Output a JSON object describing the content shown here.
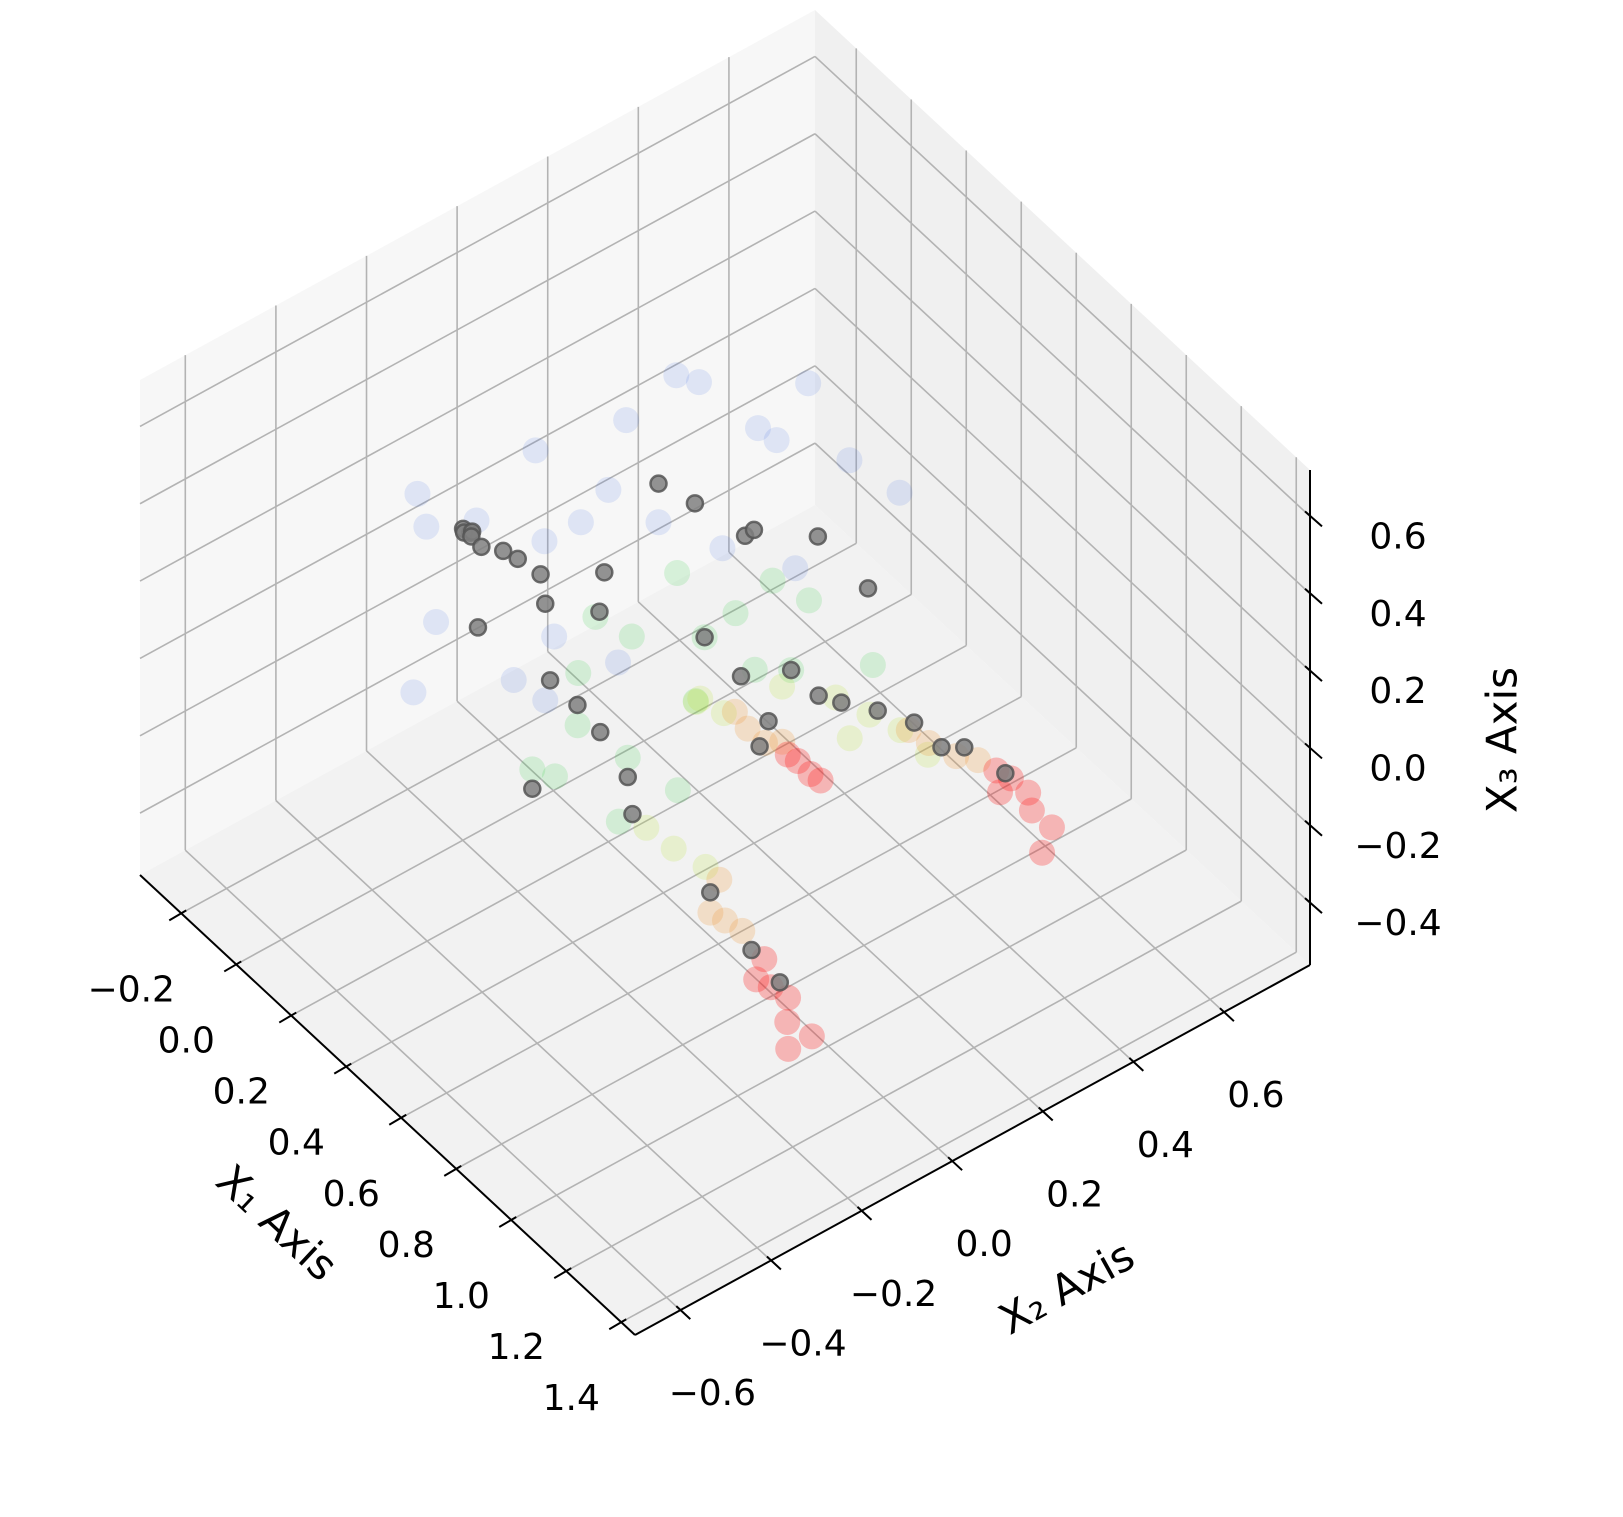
{
  "chart_data": {
    "type": "scatter3d",
    "xlabel": "X₁ Axis",
    "ylabel": "X₂ Axis",
    "zlabel": "X₃ Axis",
    "xlim": [
      -0.35,
      1.45
    ],
    "ylim": [
      -0.7,
      0.79
    ],
    "zlim": [
      -0.56,
      0.72
    ],
    "xticks": [
      {
        "value": -0.2,
        "label": "−0.2"
      },
      {
        "value": 0,
        "label": "0.0"
      },
      0.2,
      0.4,
      0.6,
      0.8,
      {
        "value": 1,
        "label": "1.0"
      },
      1.2,
      1.4
    ],
    "yticks": [
      {
        "value": -0.6,
        "label": "−0.6"
      },
      {
        "value": -0.4,
        "label": "−0.4"
      },
      {
        "value": -0.2,
        "label": "−0.2"
      },
      {
        "value": 0,
        "label": "0.0"
      },
      0.2,
      0.4,
      0.6
    ],
    "zticks": [
      {
        "value": -0.4,
        "label": "−0.4"
      },
      {
        "value": -0.2,
        "label": "−0.2"
      },
      {
        "value": 0,
        "label": "0.0"
      },
      0.2,
      0.4,
      0.6
    ],
    "grid": true,
    "series": [
      {
        "color": "#4a6fe3",
        "alpha": 0.14,
        "x": [
          0.0,
          0.05,
          0.1,
          0.15,
          0.2,
          0.25,
          -0.05,
          0.1,
          0.3,
          0.2,
          0.35,
          0.4,
          0.15,
          0.05,
          0.25,
          0.45,
          0.5,
          0.3,
          0.1,
          0.2,
          0.55,
          0.6,
          0.35,
          0.4
        ],
        "y": [
          -0.3,
          -0.2,
          -0.1,
          -0.35,
          0.0,
          -0.15,
          -0.25,
          0.1,
          0.05,
          0.2,
          -0.3,
          0.25,
          -0.4,
          -0.05,
          0.3,
          0.1,
          0.35,
          -0.2,
          0.0,
          0.15,
          0.2,
          0.4,
          0.35,
          -0.1
        ],
        "z": [
          0.4,
          0.3,
          0.45,
          0.2,
          0.35,
          0.1,
          0.25,
          0.4,
          0.3,
          0.5,
          0.15,
          0.45,
          0.05,
          0.15,
          0.35,
          0.3,
          0.4,
          0.0,
          0.2,
          0.55,
          0.25,
          0.35,
          0.5,
          0.1
        ]
      },
      {
        "color": "#2ecc40",
        "alpha": 0.16,
        "x": [
          0.5,
          0.6,
          0.55,
          0.45,
          0.65,
          0.5,
          0.4,
          0.6,
          0.7,
          0.55,
          0.45,
          0.65,
          0.5,
          0.6,
          0.75,
          0.7,
          0.42,
          0.58
        ],
        "y": [
          -0.25,
          -0.2,
          0.0,
          -0.1,
          0.05,
          -0.3,
          -0.15,
          -0.05,
          0.1,
          0.15,
          0.0,
          -0.25,
          -0.35,
          0.2,
          0.25,
          -0.15,
          -0.2,
          0.05
        ],
        "z": [
          0.1,
          0.05,
          0.2,
          0.2,
          0.15,
          0.0,
          0.25,
          0.1,
          0.15,
          0.25,
          0.3,
          -0.05,
          0.05,
          0.2,
          0.1,
          0.0,
          0.15,
          0.25
        ]
      },
      {
        "color": "#b8e62e",
        "alpha": 0.18,
        "x": [
          0.8,
          0.85,
          0.78,
          0.82,
          0.88,
          0.6,
          0.62,
          0.75,
          0.9,
          0.7,
          0.95,
          0.65
        ],
        "y": [
          -0.22,
          -0.18,
          0.15,
          0.2,
          0.12,
          -0.04,
          0.0,
          -0.25,
          0.22,
          0.08,
          0.25,
          -0.08
        ],
        "z": [
          -0.04,
          -0.08,
          0.1,
          0.05,
          0.08,
          0.1,
          0.05,
          0.0,
          0.05,
          0.12,
          0.0,
          0.15
        ]
      },
      {
        "color": "#f28c1e",
        "alpha": 0.2,
        "x": [
          0.97,
          1.0,
          0.95,
          0.97,
          1.02,
          0.93,
          0.69,
          0.72,
          0.66,
          1.05,
          0.9,
          0.75
        ],
        "y": [
          -0.21,
          -0.19,
          -0.23,
          0.24,
          0.27,
          0.22,
          0.01,
          0.03,
          0.0,
          0.3,
          -0.18,
          0.05
        ],
        "z": [
          -0.12,
          -0.14,
          -0.1,
          0.05,
          0.03,
          0.07,
          0.05,
          0.02,
          0.08,
          0.02,
          -0.08,
          0.03
        ]
      },
      {
        "color": "#ff1a1a",
        "alpha": 0.28,
        "x": [
          1.12,
          1.15,
          1.1,
          1.18,
          1.22,
          1.08,
          1.12,
          1.15,
          1.1,
          1.18,
          1.22,
          0.79,
          0.82,
          0.77,
          0.84,
          1.2,
          1.25,
          1.13
        ],
        "y": [
          -0.2,
          -0.18,
          -0.22,
          -0.2,
          -0.17,
          -0.19,
          0.33,
          0.35,
          0.31,
          0.34,
          0.36,
          0.06,
          0.07,
          0.05,
          0.08,
          -0.21,
          0.32,
          0.3
        ],
        "z": [
          -0.2,
          -0.22,
          -0.18,
          -0.25,
          -0.28,
          -0.16,
          0.0,
          -0.03,
          0.02,
          -0.05,
          -0.08,
          0.0,
          -0.02,
          0.01,
          -0.03,
          -0.3,
          -0.1,
          -0.01
        ]
      },
      {
        "color": "#808080",
        "edgecolor": "#555555",
        "alpha": 0.85,
        "x": [
          0.1,
          0.11,
          0.12,
          0.1,
          0.13,
          0.15,
          0.18,
          0.2,
          0.25,
          0.3,
          0.22,
          0.35,
          0.4,
          0.45,
          0.5,
          0.3,
          0.35,
          0.55,
          0.6,
          0.65,
          0.7,
          0.8,
          0.85,
          0.9,
          1.0,
          1.1,
          1.12,
          0.6,
          0.7,
          0.75,
          0.95,
          1.05,
          0.5,
          0.45,
          0.4,
          0.65,
          0.8,
          0.9,
          0.55,
          0.25
        ],
        "y": [
          -0.26,
          -0.25,
          -0.27,
          -0.24,
          -0.26,
          -0.25,
          -0.22,
          -0.2,
          -0.18,
          -0.2,
          -0.3,
          -0.1,
          -0.25,
          -0.22,
          -0.2,
          0.05,
          0.1,
          0.0,
          -0.2,
          -0.22,
          0.1,
          0.15,
          0.2,
          0.25,
          0.3,
          0.33,
          -0.18,
          0.05,
          0.05,
          0.0,
          0.28,
          -0.2,
          -0.35,
          0.15,
          0.2,
          0.3,
          0.1,
          -0.2,
          0.25,
          -0.05
        ],
        "z": [
          0.35,
          0.34,
          0.36,
          0.33,
          0.35,
          0.33,
          0.32,
          0.3,
          0.28,
          0.25,
          0.2,
          0.3,
          0.15,
          0.1,
          0.05,
          0.4,
          0.35,
          0.2,
          0.0,
          -0.05,
          0.15,
          0.1,
          0.08,
          0.05,
          0.02,
          0.0,
          -0.2,
          0.1,
          0.05,
          0.05,
          0.0,
          -0.15,
          0.0,
          0.3,
          0.25,
          0.2,
          0.15,
          -0.1,
          0.3,
          0.1
        ]
      }
    ]
  }
}
